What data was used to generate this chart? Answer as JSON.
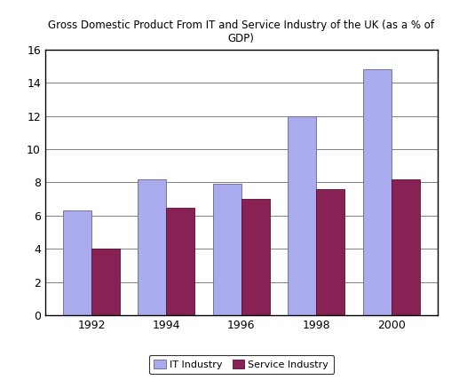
{
  "title": "Gross Domestic Product From IT and Service Industry of the UK (as a % of\nGDP)",
  "categories": [
    "1992",
    "1994",
    "1996",
    "1998",
    "2000"
  ],
  "it_values": [
    6.3,
    8.2,
    7.9,
    12.0,
    14.8
  ],
  "service_values": [
    4.0,
    6.5,
    7.0,
    7.6,
    8.2
  ],
  "it_color": "#aaaaee",
  "service_color": "#882255",
  "it_label": "IT Industry",
  "service_label": "Service Industry",
  "ylim": [
    0,
    16
  ],
  "yticks": [
    0,
    2,
    4,
    6,
    8,
    10,
    12,
    14,
    16
  ],
  "bar_width": 0.38,
  "title_fontsize": 8.5,
  "tick_fontsize": 9,
  "legend_fontsize": 8,
  "background_color": "#ffffff",
  "border_color": "#000000"
}
